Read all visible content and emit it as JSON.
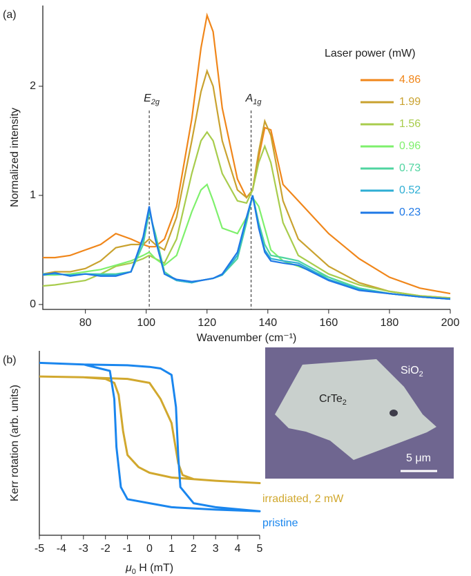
{
  "chart_data": [
    {
      "type": "line",
      "panel_label": "(a)",
      "x_label": "Wavenumber (cm⁻¹)",
      "y_label": "Normalized intensity",
      "legend_title": "Laser power (mW)",
      "xlim": [
        66,
        200
      ],
      "ylim": [
        -0.045,
        2.74
      ],
      "xticks": [
        80,
        100,
        120,
        140,
        160,
        180,
        200
      ],
      "yticks": [
        0,
        1,
        2
      ],
      "markers": [
        {
          "label": "E",
          "sub": "2g",
          "x": 101
        },
        {
          "label": "A",
          "sub": "1g",
          "x": 134.5
        }
      ],
      "x": [
        66,
        70,
        75,
        80,
        85,
        90,
        95,
        99,
        101,
        103,
        106,
        110,
        115,
        118,
        120,
        122,
        125,
        130,
        133,
        135,
        137,
        139,
        141,
        145,
        150,
        160,
        170,
        180,
        190,
        200
      ],
      "series": [
        {
          "name": "4.86",
          "color": "#f0861a",
          "values": [
            0.43,
            0.43,
            0.45,
            0.5,
            0.55,
            0.65,
            0.6,
            0.55,
            0.53,
            0.53,
            0.6,
            0.9,
            1.7,
            2.35,
            2.65,
            2.5,
            1.8,
            1.15,
            0.98,
            1.05,
            1.35,
            1.62,
            1.6,
            1.1,
            0.95,
            0.65,
            0.42,
            0.25,
            0.15,
            0.1
          ]
        },
        {
          "name": "1.99",
          "color": "#c9a22f",
          "values": [
            0.28,
            0.3,
            0.3,
            0.33,
            0.4,
            0.52,
            0.55,
            0.55,
            0.6,
            0.55,
            0.5,
            0.8,
            1.5,
            1.95,
            2.14,
            2.0,
            1.5,
            1.05,
            0.98,
            1.05,
            1.4,
            1.68,
            1.55,
            0.95,
            0.6,
            0.35,
            0.2,
            0.12,
            0.08,
            0.06
          ]
        },
        {
          "name": "1.56",
          "color": "#a8cc4c",
          "values": [
            0.17,
            0.18,
            0.2,
            0.22,
            0.28,
            0.35,
            0.38,
            0.42,
            0.45,
            0.42,
            0.38,
            0.6,
            1.2,
            1.5,
            1.58,
            1.5,
            1.2,
            0.95,
            0.93,
            1.05,
            1.3,
            1.45,
            1.3,
            0.75,
            0.45,
            0.28,
            0.18,
            0.12,
            0.08,
            0.06
          ]
        },
        {
          "name": "0.96",
          "color": "#7ef06c",
          "values": [
            0.27,
            0.27,
            0.28,
            0.3,
            0.32,
            0.36,
            0.4,
            0.45,
            0.48,
            0.42,
            0.36,
            0.45,
            0.85,
            1.05,
            1.1,
            0.95,
            0.7,
            0.65,
            0.8,
            0.98,
            0.9,
            0.7,
            0.5,
            0.4,
            0.35,
            0.25,
            0.15,
            0.1,
            0.07,
            0.05
          ]
        },
        {
          "name": "0.73",
          "color": "#4fd4a0",
          "values": [
            0.28,
            0.28,
            0.27,
            0.28,
            0.28,
            0.28,
            0.3,
            0.55,
            0.85,
            0.65,
            0.3,
            0.22,
            0.2,
            0.22,
            0.23,
            0.24,
            0.27,
            0.42,
            0.75,
            1.0,
            0.75,
            0.55,
            0.45,
            0.43,
            0.4,
            0.25,
            0.15,
            0.1,
            0.07,
            0.05
          ]
        },
        {
          "name": "0.52",
          "color": "#2eaed4",
          "values": [
            0.28,
            0.28,
            0.27,
            0.28,
            0.27,
            0.27,
            0.3,
            0.6,
            0.88,
            0.6,
            0.28,
            0.22,
            0.2,
            0.22,
            0.23,
            0.24,
            0.27,
            0.45,
            0.78,
            1.0,
            0.72,
            0.5,
            0.42,
            0.4,
            0.38,
            0.23,
            0.14,
            0.1,
            0.07,
            0.05
          ]
        },
        {
          "name": "0.23",
          "color": "#1f78e6",
          "values": [
            0.27,
            0.29,
            0.26,
            0.28,
            0.26,
            0.26,
            0.3,
            0.62,
            0.9,
            0.6,
            0.28,
            0.23,
            0.21,
            0.22,
            0.23,
            0.24,
            0.28,
            0.48,
            0.8,
            1.0,
            0.7,
            0.48,
            0.4,
            0.38,
            0.36,
            0.22,
            0.13,
            0.1,
            0.07,
            0.05
          ]
        }
      ]
    },
    {
      "type": "loop",
      "panel_label": "(b)",
      "x_label": {
        "symbol": "μ",
        "sub": "0",
        "rest": " H (mT)"
      },
      "y_label": "Kerr rotation (arb. units)",
      "xlim": [
        -5,
        5
      ],
      "ylim": [
        -1.2,
        1.1
      ],
      "xticks": [
        -5,
        -4,
        -3,
        -2,
        -1,
        0,
        1,
        2,
        3,
        4,
        5
      ],
      "series": [
        {
          "name": "irradiated, 2 mW",
          "color": "#d1a82e",
          "x": [
            -5,
            -3,
            -1,
            0,
            0.5,
            1,
            1.3,
            1.5,
            2,
            3,
            5,
            3,
            1,
            0,
            -0.5,
            -1,
            -1.2,
            -1.4,
            -1.6,
            -2,
            -3,
            -5
          ],
          "values": [
            0.78,
            0.77,
            0.75,
            0.7,
            0.5,
            0.2,
            -0.3,
            -0.45,
            -0.5,
            -0.52,
            -0.55,
            -0.52,
            -0.48,
            -0.42,
            -0.35,
            -0.2,
            0.1,
            0.55,
            0.7,
            0.75,
            0.77,
            0.78
          ]
        },
        {
          "name": "pristine",
          "color": "#1a86ee",
          "x": [
            -5,
            -3,
            -1,
            0,
            0.5,
            1,
            1.2,
            1.3,
            1.4,
            2,
            3,
            5,
            3,
            1,
            0,
            -1,
            -1.3,
            -1.5,
            -1.6,
            -1.8,
            -3,
            -5
          ],
          "values": [
            0.95,
            0.93,
            0.92,
            0.9,
            0.88,
            0.8,
            0.4,
            -0.2,
            -0.6,
            -0.8,
            -0.85,
            -0.9,
            -0.88,
            -0.85,
            -0.8,
            -0.75,
            -0.6,
            -0.1,
            0.5,
            0.85,
            0.93,
            0.95
          ]
        }
      ]
    }
  ],
  "image": {
    "labels": [
      {
        "text": "CrTe",
        "sub": "2"
      },
      {
        "text": "SiO",
        "sub": "2"
      }
    ],
    "scale_bar": "5 μm"
  }
}
